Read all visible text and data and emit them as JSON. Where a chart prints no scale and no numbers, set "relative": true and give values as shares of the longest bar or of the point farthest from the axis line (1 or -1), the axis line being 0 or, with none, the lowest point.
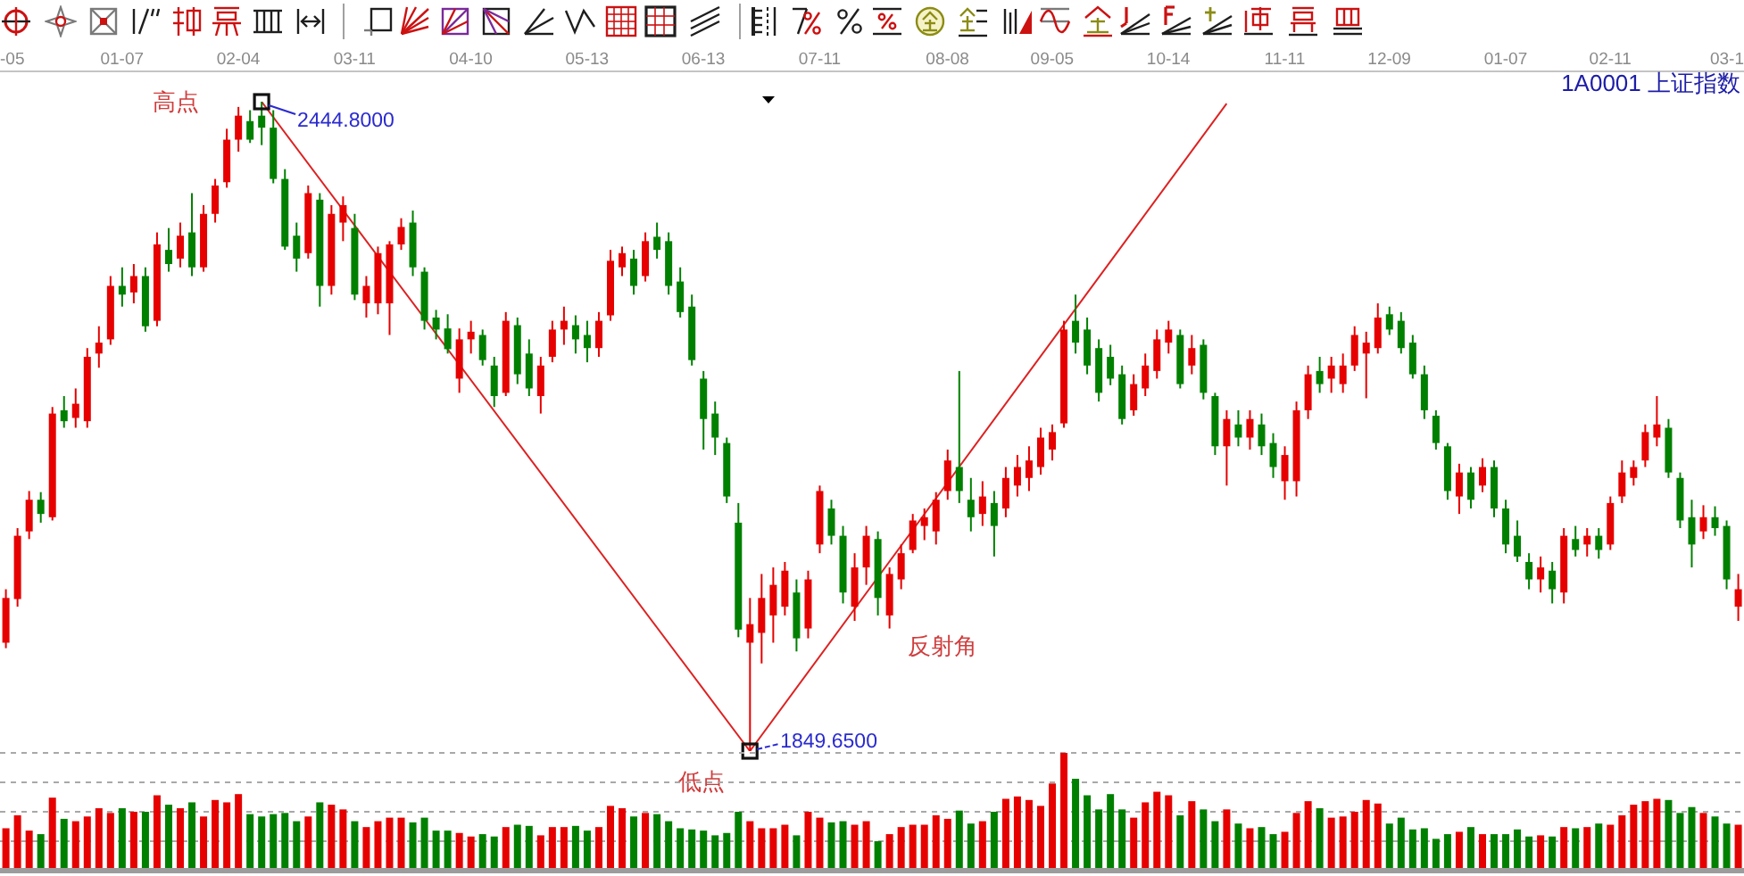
{
  "chart_data": [
    {
      "type": "candlestick",
      "title": "1A0001 上证指数",
      "tick_labels": "x",
      "categories": [
        "-05",
        null,
        null,
        null,
        null,
        null,
        null,
        null,
        null,
        null,
        "01-07",
        null,
        null,
        null,
        null,
        null,
        null,
        null,
        null,
        null,
        "02-04",
        null,
        null,
        null,
        null,
        null,
        null,
        null,
        null,
        null,
        "03-11",
        null,
        null,
        null,
        null,
        null,
        null,
        null,
        null,
        null,
        "04-10",
        null,
        null,
        null,
        null,
        null,
        null,
        null,
        null,
        null,
        "05-13",
        null,
        null,
        null,
        null,
        null,
        null,
        null,
        null,
        null,
        "06-13",
        null,
        null,
        null,
        null,
        null,
        null,
        null,
        null,
        null,
        "07-11",
        null,
        null,
        null,
        null,
        null,
        null,
        null,
        null,
        null,
        null,
        "08-08",
        null,
        null,
        null,
        null,
        null,
        null,
        null,
        null,
        "09-05",
        null,
        null,
        null,
        null,
        null,
        null,
        null,
        null,
        null,
        "10-14",
        null,
        null,
        null,
        null,
        null,
        null,
        null,
        null,
        null,
        "11-11",
        null,
        null,
        null,
        null,
        null,
        null,
        null,
        null,
        "12-09",
        null,
        null,
        null,
        null,
        null,
        null,
        null,
        null,
        null,
        "01-07",
        null,
        null,
        null,
        null,
        null,
        null,
        null,
        null,
        "02-11",
        null,
        null,
        null,
        null,
        null,
        null,
        null,
        null,
        null,
        "03-1",
        null
      ],
      "ohlc": [
        [
          1949,
          1998,
          1944,
          1990
        ],
        [
          1989,
          2054,
          1982,
          2047
        ],
        [
          2051,
          2088,
          2044,
          2080
        ],
        [
          2080,
          2087,
          2059,
          2067
        ],
        [
          2064,
          2165,
          2061,
          2159
        ],
        [
          2162,
          2175,
          2146,
          2152
        ],
        [
          2155,
          2182,
          2146,
          2168
        ],
        [
          2152,
          2219,
          2146,
          2211
        ],
        [
          2214,
          2239,
          2201,
          2224
        ],
        [
          2227,
          2285,
          2222,
          2276
        ],
        [
          2276,
          2293,
          2257,
          2268
        ],
        [
          2270,
          2296,
          2260,
          2285
        ],
        [
          2285,
          2293,
          2234,
          2239
        ],
        [
          2244,
          2325,
          2239,
          2314
        ],
        [
          2309,
          2329,
          2289,
          2296
        ],
        [
          2301,
          2334,
          2293,
          2322
        ],
        [
          2325,
          2361,
          2285,
          2293
        ],
        [
          2293,
          2350,
          2289,
          2342
        ],
        [
          2342,
          2374,
          2334,
          2368
        ],
        [
          2371,
          2420,
          2366,
          2410
        ],
        [
          2410,
          2440,
          2399,
          2432
        ],
        [
          2427,
          2437,
          2407,
          2410
        ],
        [
          2432,
          2444.8,
          2405,
          2421
        ],
        [
          2421,
          2437,
          2370,
          2374
        ],
        [
          2374,
          2383,
          2309,
          2312
        ],
        [
          2322,
          2334,
          2289,
          2301
        ],
        [
          2306,
          2368,
          2301,
          2361
        ],
        [
          2355,
          2361,
          2257,
          2276
        ],
        [
          2276,
          2350,
          2268,
          2342
        ],
        [
          2334,
          2358,
          2317,
          2350
        ],
        [
          2329,
          2342,
          2263,
          2268
        ],
        [
          2260,
          2285,
          2247,
          2276
        ],
        [
          2260,
          2312,
          2250,
          2306
        ],
        [
          2260,
          2317,
          2231,
          2314
        ],
        [
          2314,
          2338,
          2309,
          2330
        ],
        [
          2334,
          2345,
          2285,
          2293
        ],
        [
          2289,
          2293,
          2236,
          2244
        ],
        [
          2247,
          2254,
          2227,
          2236
        ],
        [
          2237,
          2250,
          2214,
          2218
        ],
        [
          2191,
          2237,
          2178,
          2227
        ],
        [
          2227,
          2244,
          2214,
          2234
        ],
        [
          2231,
          2236,
          2203,
          2208
        ],
        [
          2203,
          2211,
          2165,
          2175
        ],
        [
          2178,
          2252,
          2175,
          2244
        ],
        [
          2240,
          2247,
          2186,
          2195
        ],
        [
          2214,
          2227,
          2175,
          2182
        ],
        [
          2175,
          2211,
          2159,
          2203
        ],
        [
          2211,
          2244,
          2206,
          2236
        ],
        [
          2236,
          2257,
          2222,
          2244
        ],
        [
          2240,
          2249,
          2214,
          2227
        ],
        [
          2231,
          2244,
          2206,
          2219
        ],
        [
          2219,
          2252,
          2211,
          2244
        ],
        [
          2249,
          2309,
          2244,
          2299
        ],
        [
          2293,
          2312,
          2285,
          2306
        ],
        [
          2301,
          2309,
          2268,
          2276
        ],
        [
          2285,
          2325,
          2280,
          2317
        ],
        [
          2321,
          2334,
          2301,
          2309
        ],
        [
          2317,
          2325,
          2268,
          2276
        ],
        [
          2280,
          2293,
          2247,
          2252
        ],
        [
          2257,
          2268,
          2203,
          2208
        ],
        [
          2191,
          2198,
          2126,
          2154
        ],
        [
          2159,
          2170,
          2121,
          2137
        ],
        [
          2132,
          2137,
          2077,
          2083
        ],
        [
          2059,
          2077,
          1954,
          1961
        ],
        [
          1949,
          1990,
          1849.65,
          1966
        ],
        [
          1958,
          2012,
          1930,
          1990
        ],
        [
          1974,
          2018,
          1949,
          2002
        ],
        [
          1982,
          2023,
          1974,
          2015
        ],
        [
          1995,
          2007,
          1941,
          1953
        ],
        [
          1962,
          2015,
          1953,
          2007
        ],
        [
          2039,
          2093,
          2031,
          2088
        ],
        [
          2072,
          2080,
          2039,
          2047
        ],
        [
          2047,
          2056,
          1985,
          1995
        ],
        [
          1982,
          2031,
          1969,
          2018
        ],
        [
          2018,
          2056,
          2002,
          2047
        ],
        [
          2044,
          2051,
          1974,
          1990
        ],
        [
          1974,
          2018,
          1962,
          2012
        ],
        [
          2007,
          2039,
          1998,
          2031
        ],
        [
          2034,
          2067,
          2031,
          2061
        ],
        [
          2056,
          2072,
          2043,
          2064
        ],
        [
          2051,
          2087,
          2039,
          2080
        ],
        [
          2088,
          2126,
          2080,
          2116
        ],
        [
          2110,
          2198,
          2077,
          2088
        ],
        [
          2080,
          2100,
          2051,
          2064
        ],
        [
          2067,
          2097,
          2056,
          2083
        ],
        [
          2077,
          2088,
          2028,
          2056
        ],
        [
          2072,
          2110,
          2064,
          2100
        ],
        [
          2093,
          2121,
          2083,
          2110
        ],
        [
          2100,
          2129,
          2088,
          2116
        ],
        [
          2110,
          2146,
          2103,
          2137
        ],
        [
          2126,
          2149,
          2116,
          2142
        ],
        [
          2150,
          2244,
          2146,
          2236
        ],
        [
          2244,
          2268,
          2214,
          2224
        ],
        [
          2236,
          2247,
          2195,
          2203
        ],
        [
          2219,
          2227,
          2170,
          2178
        ],
        [
          2211,
          2222,
          2185,
          2191
        ],
        [
          2195,
          2203,
          2149,
          2154
        ],
        [
          2162,
          2195,
          2157,
          2186
        ],
        [
          2182,
          2214,
          2175,
          2203
        ],
        [
          2198,
          2236,
          2191,
          2227
        ],
        [
          2224,
          2244,
          2214,
          2236
        ],
        [
          2231,
          2236,
          2182,
          2186
        ],
        [
          2203,
          2231,
          2195,
          2219
        ],
        [
          2222,
          2227,
          2172,
          2178
        ],
        [
          2175,
          2178,
          2121,
          2129
        ],
        [
          2129,
          2162,
          2093,
          2154
        ],
        [
          2149,
          2162,
          2129,
          2137
        ],
        [
          2137,
          2162,
          2126,
          2154
        ],
        [
          2149,
          2159,
          2121,
          2129
        ],
        [
          2132,
          2141,
          2100,
          2110
        ],
        [
          2097,
          2129,
          2080,
          2121
        ],
        [
          2097,
          2170,
          2083,
          2162
        ],
        [
          2162,
          2203,
          2154,
          2195
        ],
        [
          2198,
          2211,
          2178,
          2186
        ],
        [
          2191,
          2211,
          2178,
          2203
        ],
        [
          2186,
          2214,
          2178,
          2203
        ],
        [
          2203,
          2239,
          2198,
          2231
        ],
        [
          2214,
          2234,
          2173,
          2224
        ],
        [
          2219,
          2260,
          2214,
          2247
        ],
        [
          2250,
          2257,
          2231,
          2236
        ],
        [
          2244,
          2252,
          2214,
          2219
        ],
        [
          2224,
          2231,
          2191,
          2195
        ],
        [
          2195,
          2203,
          2154,
          2162
        ],
        [
          2157,
          2162,
          2126,
          2132
        ],
        [
          2129,
          2132,
          2080,
          2088
        ],
        [
          2083,
          2113,
          2067,
          2105
        ],
        [
          2105,
          2110,
          2072,
          2080
        ],
        [
          2093,
          2118,
          2087,
          2110
        ],
        [
          2110,
          2116,
          2064,
          2072
        ],
        [
          2072,
          2080,
          2031,
          2039
        ],
        [
          2047,
          2061,
          2023,
          2028
        ],
        [
          2023,
          2031,
          1998,
          2007
        ],
        [
          2007,
          2028,
          1995,
          2018
        ],
        [
          2015,
          2023,
          1985,
          1998
        ],
        [
          1995,
          2054,
          1985,
          2047
        ],
        [
          2044,
          2056,
          2028,
          2034
        ],
        [
          2039,
          2054,
          2028,
          2047
        ],
        [
          2047,
          2054,
          2026,
          2034
        ],
        [
          2039,
          2083,
          2034,
          2077
        ],
        [
          2083,
          2116,
          2077,
          2105
        ],
        [
          2100,
          2116,
          2093,
          2110
        ],
        [
          2116,
          2149,
          2110,
          2142
        ],
        [
          2137,
          2175,
          2129,
          2149
        ],
        [
          2146,
          2154,
          2100,
          2105
        ],
        [
          2100,
          2105,
          2054,
          2061
        ],
        [
          2064,
          2080,
          2018,
          2039
        ],
        [
          2051,
          2075,
          2044,
          2064
        ],
        [
          2064,
          2074,
          2047,
          2054
        ],
        [
          2056,
          2061,
          1998,
          2007
        ],
        [
          1982,
          2012,
          1969,
          1998
        ]
      ],
      "colors": [
        "#e60000",
        "#e60000",
        "#e60000",
        "#008000",
        "#e60000",
        "#008000",
        "#e60000",
        "#e60000",
        "#e60000",
        "#e60000",
        "#008000",
        "#e60000",
        "#008000",
        "#e60000",
        "#008000",
        "#e60000",
        "#008000",
        "#e60000",
        "#e60000",
        "#e60000",
        "#e60000",
        "#008000",
        "#008000",
        "#008000",
        "#008000",
        "#008000",
        "#e60000",
        "#008000",
        "#e60000",
        "#e60000",
        "#008000",
        "#e60000",
        "#e60000",
        "#e60000",
        "#e60000",
        "#008000",
        "#008000",
        "#008000",
        "#008000",
        "#e60000",
        "#e60000",
        "#008000",
        "#008000",
        "#e60000",
        "#008000",
        "#008000",
        "#e60000",
        "#e60000",
        "#e60000",
        "#008000",
        "#008000",
        "#e60000",
        "#e60000",
        "#e60000",
        "#008000",
        "#e60000",
        "#008000",
        "#008000",
        "#008000",
        "#008000",
        "#008000",
        "#008000",
        "#008000",
        "#008000",
        "#e60000",
        "#e60000",
        "#e60000",
        "#e60000",
        "#008000",
        "#e60000",
        "#e60000",
        "#008000",
        "#008000",
        "#e60000",
        "#e60000",
        "#008000",
        "#e60000",
        "#e60000",
        "#e60000",
        "#e60000",
        "#e60000",
        "#e60000",
        "#008000",
        "#008000",
        "#e60000",
        "#008000",
        "#e60000",
        "#e60000",
        "#e60000",
        "#e60000",
        "#e60000",
        "#e60000",
        "#008000",
        "#008000",
        "#008000",
        "#008000",
        "#008000",
        "#e60000",
        "#e60000",
        "#e60000",
        "#e60000",
        "#008000",
        "#e60000",
        "#008000",
        "#008000",
        "#e60000",
        "#008000",
        "#e60000",
        "#008000",
        "#008000",
        "#e60000",
        "#e60000",
        "#e60000",
        "#008000",
        "#e60000",
        "#e60000",
        "#e60000",
        "#e60000",
        "#e60000",
        "#008000",
        "#008000",
        "#008000",
        "#008000",
        "#008000",
        "#008000",
        "#e60000",
        "#008000",
        "#e60000",
        "#008000",
        "#008000",
        "#008000",
        "#008000",
        "#e60000",
        "#008000",
        "#e60000",
        "#008000",
        "#e60000",
        "#008000",
        "#e60000",
        "#e60000",
        "#e60000",
        "#e60000",
        "#e60000",
        "#008000",
        "#008000",
        "#008000",
        "#e60000",
        "#008000",
        "#008000",
        "#e60000"
      ],
      "series": [
        {
          "type": "line",
          "color": "#dd2222",
          "values": [
            null,
            null,
            null,
            null,
            null,
            null,
            null,
            null,
            null,
            null,
            null,
            null,
            null,
            null,
            null,
            null,
            null,
            null,
            null,
            null,
            null,
            null,
            2444.8,
            null,
            null,
            null,
            null,
            null,
            null,
            null,
            null,
            null,
            null,
            null,
            null,
            null,
            null,
            null,
            null,
            null,
            null,
            null,
            null,
            null,
            null,
            null,
            null,
            null,
            null,
            null,
            null,
            null,
            null,
            null,
            null,
            null,
            null,
            null,
            null,
            null,
            null,
            null,
            null,
            null,
            1849.65,
            null,
            null,
            null,
            null,
            null,
            null,
            null,
            null,
            null,
            null,
            null,
            null,
            null,
            null,
            null,
            null,
            null,
            null,
            null,
            null,
            null,
            null,
            null,
            null,
            null,
            null,
            null,
            null,
            null,
            null,
            null,
            null,
            null,
            null,
            null,
            null,
            null,
            null,
            null,
            null,
            2443,
            null,
            null,
            null,
            null,
            null,
            null,
            null,
            null,
            null,
            null,
            null,
            null,
            null,
            null,
            null,
            null,
            null,
            null,
            null,
            null,
            null,
            null,
            null,
            null,
            null,
            null,
            null,
            null,
            null,
            null,
            null,
            null,
            null,
            null,
            null,
            null,
            null,
            null,
            null,
            null,
            null,
            null,
            null,
            null
          ]
        }
      ],
      "annotations": [
        "高点",
        "2444.8000",
        "低点",
        "1849.6500",
        "反射角"
      ]
    },
    {
      "type": "bar",
      "relative": true,
      "grid": "y",
      "tick_labels": false,
      "categories": [
        null,
        null,
        null,
        null,
        null,
        null,
        null,
        null,
        null,
        null,
        null,
        null,
        null,
        null,
        null,
        null,
        null,
        null,
        null,
        null,
        null,
        null,
        null,
        null,
        null,
        null,
        null,
        null,
        null,
        null,
        null,
        null,
        null,
        null,
        null,
        null,
        null,
        null,
        null,
        null,
        null,
        null,
        null,
        null,
        null,
        null,
        null,
        null,
        null,
        null,
        null,
        null,
        null,
        null,
        null,
        null,
        null,
        null,
        null,
        null,
        null,
        null,
        null,
        null,
        null,
        null,
        null,
        null,
        null,
        null,
        null,
        null,
        null,
        null,
        null,
        null,
        null,
        null,
        null,
        null,
        null,
        null,
        null,
        null,
        null,
        null,
        null,
        null,
        null,
        null,
        null,
        null,
        null,
        null,
        null,
        null,
        null,
        null,
        null,
        null,
        null,
        null,
        null,
        null,
        null,
        null,
        null,
        null,
        null,
        null,
        null,
        null,
        null,
        null,
        null,
        null,
        null,
        null,
        null,
        null,
        null,
        null,
        null,
        null,
        null,
        null,
        null,
        null,
        null,
        null,
        null,
        null,
        null,
        null,
        null,
        null,
        null,
        null,
        null,
        null,
        null,
        null,
        null,
        null,
        null,
        null,
        null,
        null,
        null,
        null
      ],
      "values": [
        0.36,
        0.47,
        0.34,
        0.31,
        0.62,
        0.44,
        0.42,
        0.46,
        0.53,
        0.49,
        0.53,
        0.5,
        0.5,
        0.64,
        0.56,
        0.53,
        0.58,
        0.46,
        0.6,
        0.58,
        0.65,
        0.48,
        0.46,
        0.48,
        0.49,
        0.42,
        0.46,
        0.58,
        0.56,
        0.52,
        0.42,
        0.37,
        0.42,
        0.45,
        0.45,
        0.41,
        0.45,
        0.34,
        0.34,
        0.32,
        0.29,
        0.31,
        0.29,
        0.37,
        0.39,
        0.38,
        0.3,
        0.37,
        0.37,
        0.38,
        0.34,
        0.37,
        0.55,
        0.53,
        0.46,
        0.49,
        0.48,
        0.42,
        0.36,
        0.35,
        0.34,
        0.3,
        0.32,
        0.5,
        0.42,
        0.36,
        0.36,
        0.39,
        0.3,
        0.5,
        0.45,
        0.41,
        0.42,
        0.39,
        0.42,
        0.25,
        0.31,
        0.37,
        0.39,
        0.39,
        0.47,
        0.44,
        0.51,
        0.4,
        0.42,
        0.5,
        0.61,
        0.63,
        0.6,
        0.55,
        0.74,
        1,
        0.78,
        0.64,
        0.52,
        0.65,
        0.52,
        0.45,
        0.58,
        0.67,
        0.64,
        0.47,
        0.59,
        0.52,
        0.42,
        0.52,
        0.4,
        0.36,
        0.37,
        0.31,
        0.33,
        0.49,
        0.59,
        0.53,
        0.45,
        0.46,
        0.5,
        0.6,
        0.57,
        0.4,
        0.45,
        0.35,
        0.36,
        0.27,
        0.31,
        0.33,
        0.37,
        0.31,
        0.31,
        0.31,
        0.35,
        0.29,
        0.3,
        0.29,
        0.37,
        0.36,
        0.37,
        0.4,
        0.39,
        0.47,
        0.56,
        0.59,
        0.61,
        0.6,
        0.49,
        0.54,
        0.49,
        0.46,
        0.4,
        0.39
      ],
      "colors": [
        "#e60000",
        "#e60000",
        "#e60000",
        "#008000",
        "#e60000",
        "#008000",
        "#e60000",
        "#e60000",
        "#e60000",
        "#e60000",
        "#008000",
        "#e60000",
        "#008000",
        "#e60000",
        "#008000",
        "#e60000",
        "#008000",
        "#e60000",
        "#e60000",
        "#e60000",
        "#e60000",
        "#008000",
        "#008000",
        "#008000",
        "#008000",
        "#008000",
        "#e60000",
        "#008000",
        "#e60000",
        "#e60000",
        "#008000",
        "#e60000",
        "#e60000",
        "#e60000",
        "#e60000",
        "#008000",
        "#008000",
        "#008000",
        "#008000",
        "#e60000",
        "#e60000",
        "#008000",
        "#008000",
        "#e60000",
        "#008000",
        "#008000",
        "#e60000",
        "#e60000",
        "#e60000",
        "#008000",
        "#008000",
        "#e60000",
        "#e60000",
        "#e60000",
        "#008000",
        "#e60000",
        "#008000",
        "#008000",
        "#008000",
        "#008000",
        "#008000",
        "#008000",
        "#008000",
        "#008000",
        "#e60000",
        "#e60000",
        "#e60000",
        "#e60000",
        "#008000",
        "#e60000",
        "#e60000",
        "#008000",
        "#008000",
        "#e60000",
        "#e60000",
        "#008000",
        "#e60000",
        "#e60000",
        "#e60000",
        "#e60000",
        "#e60000",
        "#e60000",
        "#008000",
        "#008000",
        "#e60000",
        "#008000",
        "#e60000",
        "#e60000",
        "#e60000",
        "#e60000",
        "#e60000",
        "#e60000",
        "#008000",
        "#008000",
        "#008000",
        "#008000",
        "#008000",
        "#e60000",
        "#e60000",
        "#e60000",
        "#e60000",
        "#008000",
        "#e60000",
        "#008000",
        "#008000",
        "#e60000",
        "#008000",
        "#e60000",
        "#008000",
        "#008000",
        "#e60000",
        "#e60000",
        "#e60000",
        "#008000",
        "#e60000",
        "#e60000",
        "#e60000",
        "#e60000",
        "#e60000",
        "#008000",
        "#008000",
        "#008000",
        "#008000",
        "#008000",
        "#008000",
        "#e60000",
        "#008000",
        "#e60000",
        "#008000",
        "#008000",
        "#008000",
        "#008000",
        "#e60000",
        "#008000",
        "#e60000",
        "#008000",
        "#e60000",
        "#008000",
        "#e60000",
        "#e60000",
        "#e60000",
        "#e60000",
        "#e60000",
        "#008000",
        "#008000",
        "#008000",
        "#e60000",
        "#008000",
        "#008000",
        "#e60000"
      ]
    }
  ]
}
